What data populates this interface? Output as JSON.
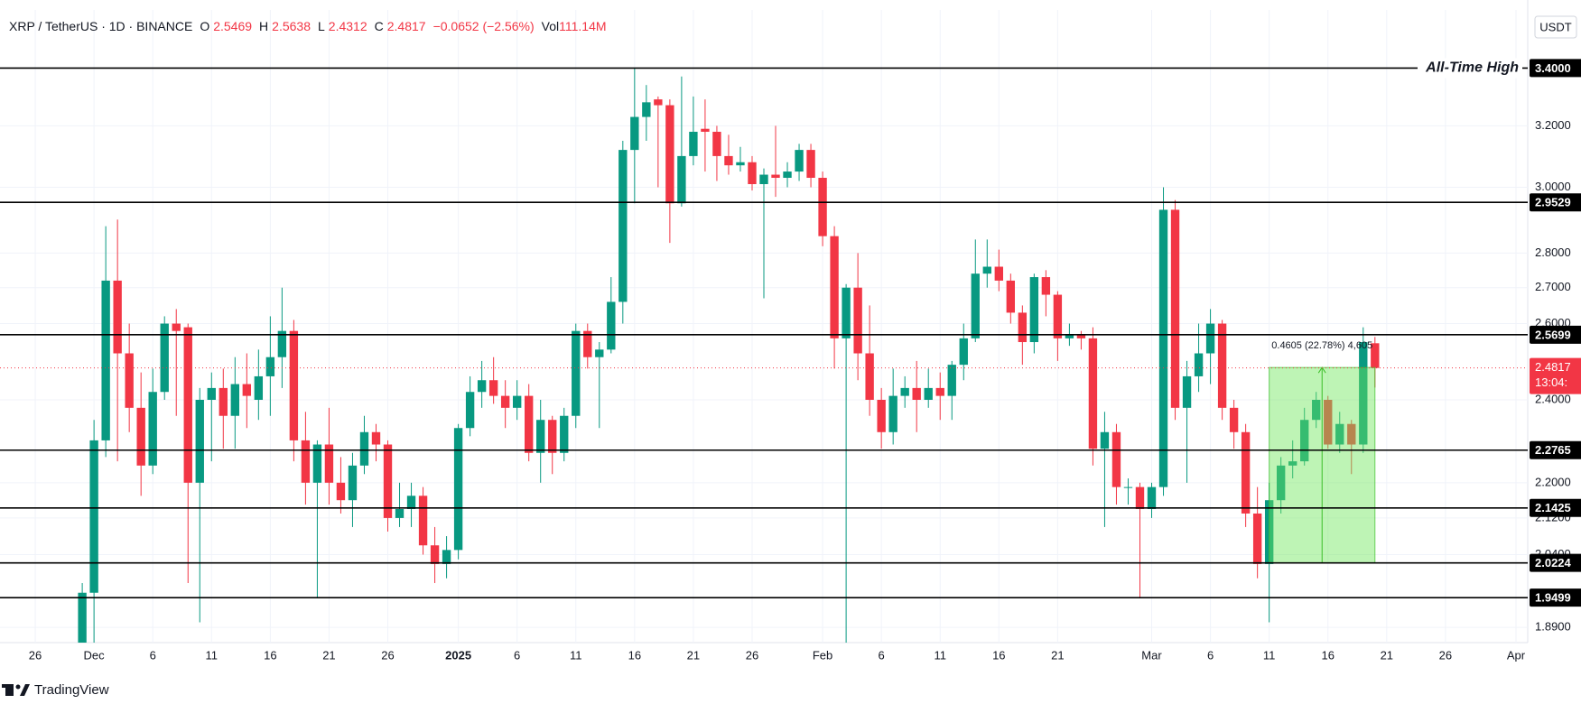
{
  "chart_data": {
    "type": "candlestick",
    "symbol": "XRP / TetherUS · 1D · BINANCE",
    "ohlc_keys": [
      "O",
      "H",
      "L",
      "C"
    ],
    "change": "−0.0652 (−2.56%)",
    "volume_key": "Vol",
    "volume": "111.14M",
    "currency": "USDT",
    "brand": "TradingView",
    "log_scale": true,
    "grid": true,
    "up_color": "#089981",
    "down_color": "#f23645",
    "x": [
      "2024-11-30",
      "2024-12-01",
      "2024-12-02",
      "2024-12-03",
      "2024-12-04",
      "2024-12-05",
      "2024-12-06",
      "2024-12-07",
      "2024-12-08",
      "2024-12-09",
      "2024-12-10",
      "2024-12-11",
      "2024-12-12",
      "2024-12-13",
      "2024-12-14",
      "2024-12-15",
      "2024-12-16",
      "2024-12-17",
      "2024-12-18",
      "2024-12-19",
      "2024-12-20",
      "2024-12-21",
      "2024-12-22",
      "2024-12-23",
      "2024-12-24",
      "2024-12-25",
      "2024-12-26",
      "2024-12-27",
      "2024-12-28",
      "2024-12-29",
      "2024-12-30",
      "2024-12-31",
      "2025-01-01",
      "2025-01-02",
      "2025-01-03",
      "2025-01-04",
      "2025-01-05",
      "2025-01-06",
      "2025-01-07",
      "2025-01-08",
      "2025-01-09",
      "2025-01-10",
      "2025-01-11",
      "2025-01-12",
      "2025-01-13",
      "2025-01-14",
      "2025-01-15",
      "2025-01-16",
      "2025-01-17",
      "2025-01-18",
      "2025-01-19",
      "2025-01-20",
      "2025-01-21",
      "2025-01-22",
      "2025-01-23",
      "2025-01-24",
      "2025-01-25",
      "2025-01-26",
      "2025-01-27",
      "2025-01-28",
      "2025-01-29",
      "2025-01-30",
      "2025-01-31",
      "2025-02-01",
      "2025-02-02",
      "2025-02-03",
      "2025-02-04",
      "2025-02-05",
      "2025-02-06",
      "2025-02-07",
      "2025-02-08",
      "2025-02-09",
      "2025-02-10",
      "2025-02-11",
      "2025-02-12",
      "2025-02-13",
      "2025-02-14",
      "2025-02-15",
      "2025-02-16",
      "2025-02-17",
      "2025-02-18",
      "2025-02-19",
      "2025-02-20",
      "2025-02-21",
      "2025-02-22",
      "2025-02-23",
      "2025-02-24",
      "2025-02-25",
      "2025-02-26",
      "2025-02-27",
      "2025-02-28",
      "2025-03-01",
      "2025-03-02",
      "2025-03-03",
      "2025-03-04",
      "2025-03-05",
      "2025-03-06",
      "2025-03-07",
      "2025-03-08",
      "2025-03-09",
      "2025-03-10",
      "2025-03-11",
      "2025-03-12",
      "2025-03-13",
      "2025-03-14",
      "2025-03-15",
      "2025-03-16",
      "2025-03-17",
      "2025-03-18",
      "2025-03-19",
      "2025-03-20"
    ],
    "open": [
      1.86,
      1.96,
      2.3,
      2.72,
      2.52,
      2.38,
      2.24,
      2.42,
      2.6,
      2.59,
      2.2,
      2.4,
      2.43,
      2.36,
      2.44,
      2.4,
      2.46,
      2.51,
      2.58,
      2.3,
      2.2,
      2.29,
      2.2,
      2.16,
      2.24,
      2.32,
      2.29,
      2.12,
      2.14,
      2.17,
      2.06,
      2.02,
      2.05,
      2.33,
      2.42,
      2.45,
      2.41,
      2.38,
      2.41,
      2.27,
      2.35,
      2.27,
      2.36,
      2.58,
      2.51,
      2.53,
      2.66,
      3.12,
      3.23,
      3.29,
      3.27,
      2.95,
      3.1,
      3.19,
      3.18,
      3.1,
      3.07,
      3.08,
      3.01,
      3.04,
      3.03,
      3.05,
      3.12,
      3.03,
      2.85,
      2.56,
      2.7,
      2.52,
      2.4,
      2.32,
      2.41,
      2.43,
      2.4,
      2.43,
      2.41,
      2.49,
      2.56,
      2.74,
      2.76,
      2.72,
      2.63,
      2.55,
      2.73,
      2.68,
      2.56,
      2.57,
      2.56,
      2.28,
      2.32,
      2.19,
      2.19,
      2.14,
      2.19,
      2.93,
      2.38,
      2.46,
      2.52,
      2.6,
      2.38,
      2.32,
      2.13,
      2.02,
      2.16,
      2.24,
      2.25,
      2.35,
      2.4,
      2.29,
      2.34,
      2.29,
      2.5469
    ],
    "high": [
      1.98,
      2.35,
      2.88,
      2.9,
      2.6,
      2.47,
      2.48,
      2.62,
      2.64,
      2.6,
      2.43,
      2.47,
      2.48,
      2.51,
      2.52,
      2.53,
      2.62,
      2.7,
      2.61,
      2.37,
      2.3,
      2.38,
      2.26,
      2.27,
      2.36,
      2.34,
      2.3,
      2.2,
      2.2,
      2.19,
      2.1,
      2.08,
      2.34,
      2.46,
      2.5,
      2.51,
      2.45,
      2.45,
      2.44,
      2.4,
      2.36,
      2.38,
      2.6,
      2.6,
      2.55,
      2.73,
      3.15,
      3.4,
      3.34,
      3.3,
      3.29,
      3.37,
      3.3,
      3.29,
      3.2,
      3.17,
      3.13,
      3.1,
      3.06,
      3.2,
      3.08,
      3.14,
      3.14,
      3.05,
      2.88,
      2.71,
      2.8,
      2.65,
      2.43,
      2.48,
      2.46,
      2.5,
      2.48,
      2.47,
      2.5,
      2.6,
      2.84,
      2.84,
      2.81,
      2.74,
      2.65,
      2.74,
      2.75,
      2.69,
      2.6,
      2.58,
      2.59,
      2.37,
      2.34,
      2.21,
      2.2,
      2.2,
      3.0,
      2.96,
      2.5,
      2.6,
      2.64,
      2.61,
      2.4,
      2.34,
      2.19,
      2.2,
      2.26,
      2.3,
      2.38,
      2.42,
      2.41,
      2.37,
      2.35,
      2.59,
      2.5638
    ],
    "low": [
      1.84,
      1.86,
      2.26,
      2.25,
      2.32,
      2.17,
      2.22,
      2.4,
      2.36,
      1.98,
      1.9,
      2.25,
      2.28,
      2.28,
      2.33,
      2.35,
      2.36,
      2.43,
      2.25,
      2.15,
      1.95,
      2.15,
      2.13,
      2.1,
      2.22,
      2.25,
      2.09,
      2.1,
      2.1,
      2.04,
      1.98,
      1.99,
      2.03,
      2.31,
      2.38,
      2.39,
      2.33,
      2.35,
      2.25,
      2.2,
      2.22,
      2.25,
      2.33,
      2.48,
      2.33,
      2.52,
      2.6,
      2.95,
      3.15,
      3.0,
      2.83,
      2.94,
      3.07,
      3.05,
      3.02,
      3.04,
      3.05,
      2.99,
      2.67,
      2.97,
      3.0,
      3.02,
      3.0,
      2.82,
      2.48,
      1.77,
      2.45,
      2.36,
      2.28,
      2.29,
      2.38,
      2.32,
      2.38,
      2.35,
      2.35,
      2.45,
      2.55,
      2.7,
      2.69,
      2.6,
      2.49,
      2.52,
      2.62,
      2.5,
      2.54,
      2.53,
      2.24,
      2.1,
      2.15,
      2.15,
      1.95,
      2.12,
      2.17,
      2.35,
      2.2,
      2.42,
      2.44,
      2.35,
      2.28,
      2.1,
      1.99,
      1.9,
      2.13,
      2.21,
      2.24,
      2.33,
      2.28,
      2.27,
      2.22,
      2.27,
      2.4312
    ],
    "close": [
      1.96,
      2.3,
      2.72,
      2.52,
      2.38,
      2.24,
      2.42,
      2.6,
      2.58,
      2.2,
      2.4,
      2.43,
      2.36,
      2.44,
      2.41,
      2.46,
      2.51,
      2.58,
      2.3,
      2.2,
      2.29,
      2.2,
      2.16,
      2.24,
      2.32,
      2.29,
      2.12,
      2.14,
      2.17,
      2.06,
      2.02,
      2.05,
      2.33,
      2.42,
      2.45,
      2.41,
      2.38,
      2.41,
      2.27,
      2.35,
      2.27,
      2.36,
      2.58,
      2.51,
      2.53,
      2.66,
      3.12,
      3.23,
      3.28,
      3.27,
      2.95,
      3.1,
      3.18,
      3.18,
      3.1,
      3.07,
      3.08,
      3.01,
      3.04,
      3.03,
      3.05,
      3.12,
      3.03,
      2.85,
      2.56,
      2.7,
      2.52,
      2.4,
      2.32,
      2.41,
      2.43,
      2.4,
      2.43,
      2.41,
      2.49,
      2.56,
      2.74,
      2.76,
      2.72,
      2.63,
      2.55,
      2.73,
      2.68,
      2.56,
      2.57,
      2.56,
      2.28,
      2.32,
      2.19,
      2.19,
      2.14,
      2.19,
      2.93,
      2.38,
      2.46,
      2.52,
      2.6,
      2.38,
      2.32,
      2.13,
      2.02,
      2.16,
      2.24,
      2.25,
      2.35,
      2.4,
      2.29,
      2.34,
      2.29,
      2.55,
      2.4817
    ],
    "countdown": "13:04:",
    "xlim": [
      "2024-11-23",
      "2025-04-02"
    ],
    "xticks": [
      {
        "value": "2024-11-26",
        "label": "26"
      },
      {
        "value": "2024-12-01",
        "label": "Dec"
      },
      {
        "value": "2024-12-06",
        "label": "6"
      },
      {
        "value": "2024-12-11",
        "label": "11"
      },
      {
        "value": "2024-12-16",
        "label": "16"
      },
      {
        "value": "2024-12-21",
        "label": "21"
      },
      {
        "value": "2024-12-26",
        "label": "26"
      },
      {
        "value": "2025-01-01",
        "label": "2025"
      },
      {
        "value": "2025-01-06",
        "label": "6"
      },
      {
        "value": "2025-01-11",
        "label": "11"
      },
      {
        "value": "2025-01-16",
        "label": "16"
      },
      {
        "value": "2025-01-21",
        "label": "21"
      },
      {
        "value": "2025-01-26",
        "label": "26"
      },
      {
        "value": "2025-02-01",
        "label": "Feb"
      },
      {
        "value": "2025-02-06",
        "label": "6"
      },
      {
        "value": "2025-02-11",
        "label": "11"
      },
      {
        "value": "2025-02-16",
        "label": "16"
      },
      {
        "value": "2025-02-21",
        "label": "21"
      },
      {
        "value": "2025-03-01",
        "label": "Mar"
      },
      {
        "value": "2025-03-06",
        "label": "6"
      },
      {
        "value": "2025-03-11",
        "label": "11"
      },
      {
        "value": "2025-03-16",
        "label": "16"
      },
      {
        "value": "2025-03-21",
        "label": "21"
      },
      {
        "value": "2025-03-26",
        "label": "26"
      },
      {
        "value": "2025-04-01",
        "label": "Apr"
      }
    ],
    "ylim": [
      1.86,
      3.614
    ],
    "yticks": [
      {
        "value": 3.2,
        "label": "3.2000"
      },
      {
        "value": 3.0,
        "label": "3.0000"
      },
      {
        "value": 2.8,
        "label": "2.8000"
      },
      {
        "value": 2.7,
        "label": "2.7000"
      },
      {
        "value": 2.6,
        "label": "2.6000"
      },
      {
        "value": 2.4,
        "label": "2.4000"
      },
      {
        "value": 2.2,
        "label": "2.2000"
      },
      {
        "value": 2.12,
        "label": "2.1200"
      },
      {
        "value": 2.04,
        "label": "2.0400"
      },
      {
        "value": 1.89,
        "label": "1.8900"
      }
    ],
    "levels": [
      {
        "value": 3.4,
        "label": "3.4000"
      },
      2.9529,
      2.5699,
      2.2765,
      2.1425,
      2.0224,
      1.9499
    ],
    "level_annotation": "All-Time High",
    "measure": {
      "label": "0.4605 (22.78%) 4,605",
      "from": "2025-03-11",
      "to": "2025-03-20",
      "low": 2.0224,
      "high": 2.4829
    }
  }
}
